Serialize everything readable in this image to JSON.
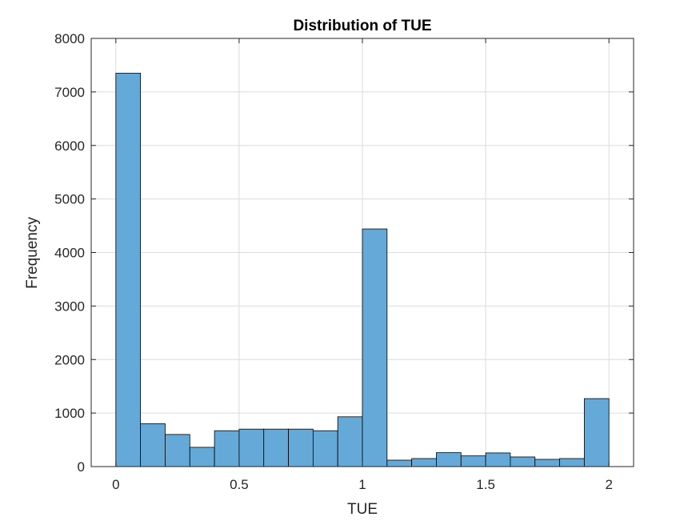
{
  "chart_data": {
    "type": "bar",
    "title": "Distribution of TUE",
    "xlabel": "TUE",
    "ylabel": "Frequency",
    "xlim": [
      -0.1,
      2.1
    ],
    "ylim": [
      0,
      8000
    ],
    "xticks": [
      0,
      0.5,
      1,
      1.5,
      2
    ],
    "xtick_labels": [
      "0",
      "0.5",
      "1",
      "1.5",
      "2"
    ],
    "yticks": [
      0,
      1000,
      2000,
      3000,
      4000,
      5000,
      6000,
      7000,
      8000
    ],
    "ytick_labels": [
      "0",
      "1000",
      "2000",
      "3000",
      "4000",
      "5000",
      "6000",
      "7000",
      "8000"
    ],
    "bin_width": 0.1,
    "bin_edges": [
      0,
      0.1,
      0.2,
      0.3,
      0.4,
      0.5,
      0.6,
      0.7,
      0.8,
      0.9,
      1.0,
      1.1,
      1.2,
      1.3,
      1.4,
      1.5,
      1.6,
      1.7,
      1.8,
      1.9,
      2.0
    ],
    "values": [
      7350,
      800,
      600,
      360,
      670,
      700,
      700,
      700,
      670,
      930,
      4440,
      120,
      150,
      260,
      200,
      255,
      180,
      135,
      150,
      1270
    ],
    "grid": true,
    "bar_color": "#65a9d8",
    "bar_edge_color": "#000000"
  }
}
